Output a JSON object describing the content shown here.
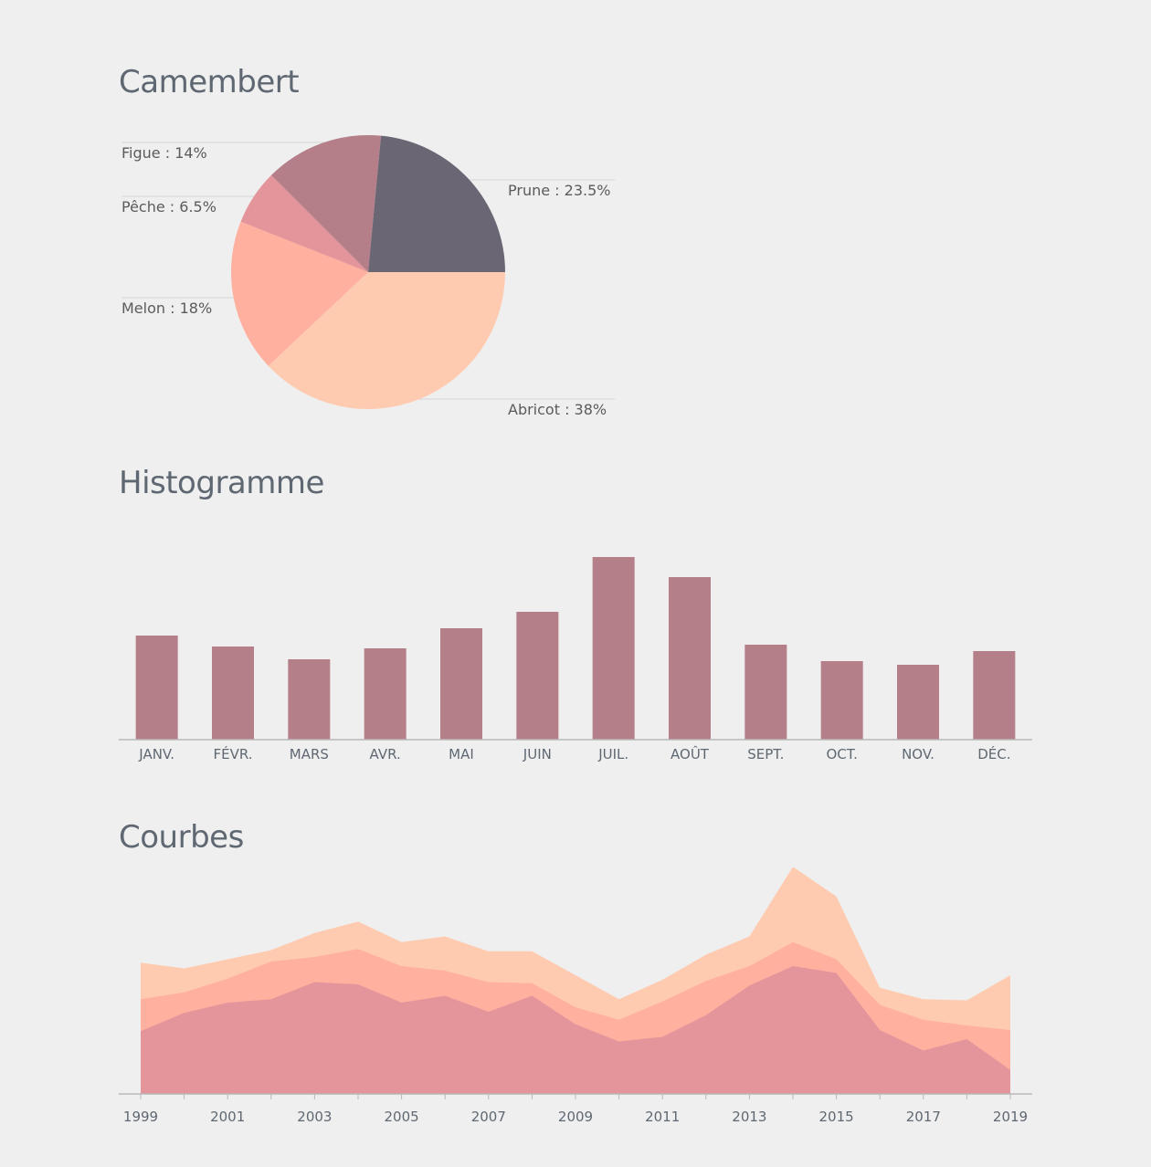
{
  "sections": {
    "pie_title": "Camembert",
    "bar_title": "Histogramme",
    "area_title": "Courbes"
  },
  "colors": {
    "background": "#efefef",
    "title": "#5f6872",
    "axis": "#b8b8b8",
    "bar": "#b47f88"
  },
  "chart_data": [
    {
      "type": "pie",
      "title": "Camembert",
      "slices": [
        {
          "name": "Prune",
          "value": 23.5,
          "label": "Prune : 23.5%",
          "color": "#6b6673"
        },
        {
          "name": "Abricot",
          "value": 38,
          "label": "Abricot : 38%",
          "color": "#ffcbb0"
        },
        {
          "name": "Melon",
          "value": 18,
          "label": "Melon : 18%",
          "color": "#ffb09f"
        },
        {
          "name": "Pêche",
          "value": 6.5,
          "label": "Pêche : 6.5%",
          "color": "#e4959b"
        },
        {
          "name": "Figue",
          "value": 14,
          "label": "Figue : 14%",
          "color": "#b47f88"
        }
      ]
    },
    {
      "type": "bar",
      "title": "Histogramme",
      "categories": [
        "JANV.",
        "FÉVR.",
        "MARS",
        "AVR.",
        "MAI",
        "JUIN",
        "JUIL.",
        "AOÛT",
        "SEPT.",
        "OCT.",
        "NOV.",
        "DÉC."
      ],
      "values": [
        57,
        51,
        44,
        50,
        61,
        70,
        100,
        89,
        52,
        43,
        41,
        48.5
      ],
      "ylim": [
        0,
        100
      ],
      "color": "#b47f88"
    },
    {
      "type": "area",
      "title": "Courbes",
      "stacked": true,
      "x": [
        1999,
        2000,
        2001,
        2002,
        2003,
        2004,
        2005,
        2006,
        2007,
        2008,
        2009,
        2010,
        2011,
        2012,
        2013,
        2014,
        2015,
        2016,
        2017,
        2018,
        2019
      ],
      "tick_labels": [
        "1999",
        "2001",
        "2003",
        "2005",
        "2007",
        "2009",
        "2011",
        "2013",
        "2015",
        "2017",
        "2019"
      ],
      "ylim": [
        0,
        200
      ],
      "series": [
        {
          "color": "#e4959b",
          "values": [
            55,
            71,
            80,
            83,
            98,
            96,
            80,
            86,
            72,
            86,
            61,
            46,
            50,
            69,
            95,
            112,
            106,
            56,
            38,
            48,
            21
          ]
        },
        {
          "color": "#ffb09f",
          "values": [
            28,
            18,
            21,
            33,
            22,
            31,
            32,
            22,
            26,
            11,
            15,
            19,
            31,
            30,
            17,
            21,
            12,
            22,
            27,
            12,
            35
          ]
        },
        {
          "color": "#ffcbb0",
          "values": [
            32,
            21,
            17,
            10,
            21,
            24,
            21,
            30,
            27,
            28,
            28,
            18,
            19,
            23,
            26,
            66,
            55,
            15,
            18,
            22,
            48
          ]
        }
      ]
    }
  ]
}
